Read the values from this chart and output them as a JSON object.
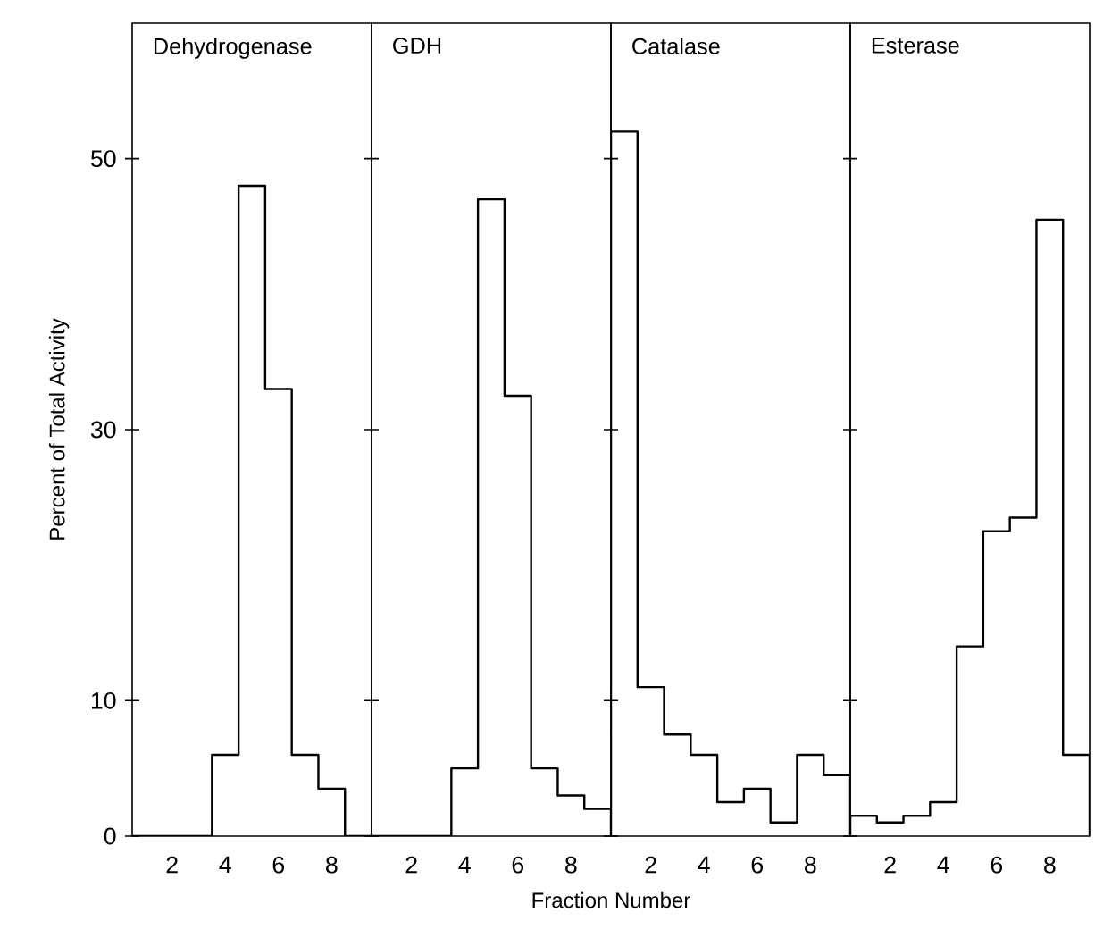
{
  "chart_data": [
    {
      "type": "histogram",
      "title": "Dehydrogenase",
      "ylabel": "Percent of Total Activity",
      "bins": [
        0.5,
        1.5,
        2.5,
        3.5,
        4.5,
        5.5,
        6.5,
        7.5,
        8.5,
        9.5
      ],
      "values": [
        0,
        0,
        0,
        6,
        48,
        33,
        6,
        3.5,
        0
      ],
      "xlim": [
        0.5,
        9.5
      ],
      "ylim": [
        0,
        60
      ],
      "xticks": [
        2,
        4,
        6,
        8
      ],
      "yticks": [
        0,
        10,
        30,
        50
      ]
    },
    {
      "type": "histogram",
      "title": "GDH",
      "xlabel": "Fraction Number",
      "bins": [
        0.5,
        1.5,
        2.5,
        3.5,
        4.5,
        5.5,
        6.5,
        7.5,
        8.5,
        9.5
      ],
      "values": [
        0,
        0,
        0,
        5,
        47,
        32.5,
        5,
        3,
        2
      ],
      "xlim": [
        0.5,
        9.5
      ],
      "ylim": [
        0,
        60
      ],
      "xticks": [
        2,
        4,
        6,
        8
      ],
      "yticks": [
        0,
        10,
        30,
        50
      ],
      "tick_labels": "x"
    },
    {
      "type": "histogram",
      "title": "Catalase",
      "bins": [
        0.5,
        1.5,
        2.5,
        3.5,
        4.5,
        5.5,
        6.5,
        7.5,
        8.5,
        9.5
      ],
      "values": [
        52,
        11,
        7.5,
        6,
        2.5,
        3.5,
        1,
        6,
        4.5
      ],
      "xlim": [
        0.5,
        9.5
      ],
      "ylim": [
        0,
        60
      ],
      "xticks": [
        2,
        4,
        6,
        8
      ],
      "yticks": [
        0,
        10,
        30,
        50
      ],
      "tick_labels": "x"
    },
    {
      "type": "histogram",
      "title": "Esterase",
      "bins": [
        0.5,
        1.5,
        2.5,
        3.5,
        4.5,
        5.5,
        6.5,
        7.5,
        8.5,
        9.5
      ],
      "values": [
        1.5,
        1,
        1.5,
        2.5,
        14,
        22.5,
        23.5,
        45.5,
        6
      ],
      "xlim": [
        0.5,
        9.5
      ],
      "ylim": [
        0,
        60
      ],
      "xticks": [
        2,
        4,
        6,
        8
      ],
      "yticks": [
        0,
        10,
        30,
        50
      ],
      "tick_labels": "x"
    }
  ]
}
